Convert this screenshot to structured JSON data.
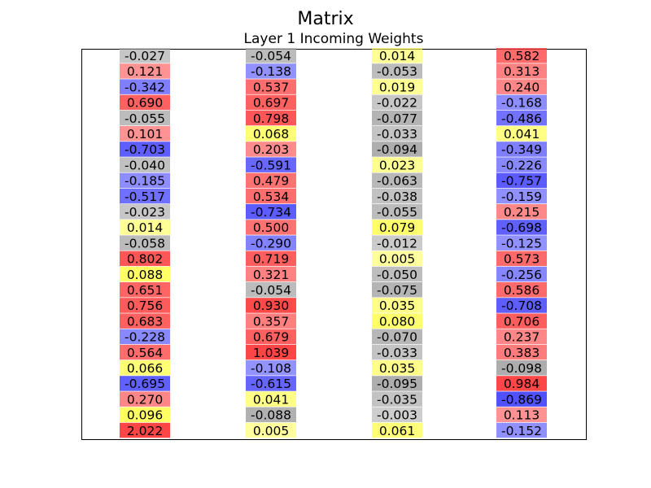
{
  "chart_data": {
    "type": "table",
    "title": "Matrix",
    "subtitle": "Layer 1 Incoming Weights",
    "columns": [
      [
        "-0.027",
        "0.121",
        "-0.342",
        "0.690",
        "-0.055",
        "0.101",
        "-0.703",
        "-0.040",
        "-0.185",
        "-0.517",
        "-0.023",
        "0.014",
        "-0.058",
        "0.802",
        "0.088",
        "0.651",
        "0.756",
        "0.683",
        "-0.228",
        "0.564",
        "0.066",
        "-0.695",
        "0.270",
        "0.096",
        "2.022"
      ],
      [
        "-0.054",
        "-0.138",
        "0.537",
        "0.697",
        "0.798",
        "0.068",
        "0.203",
        "-0.591",
        "0.479",
        "0.534",
        "-0.734",
        "0.500",
        "-0.290",
        "0.719",
        "0.321",
        "-0.054",
        "0.930",
        "0.357",
        "0.679",
        "1.039",
        "-0.108",
        "-0.615",
        "0.041",
        "-0.088",
        "0.005"
      ],
      [
        "0.014",
        "-0.053",
        "0.019",
        "-0.022",
        "-0.077",
        "-0.033",
        "-0.094",
        "0.023",
        "-0.063",
        "-0.038",
        "-0.055",
        "0.079",
        "-0.012",
        "0.005",
        "-0.050",
        "-0.075",
        "0.035",
        "0.080",
        "-0.070",
        "-0.033",
        "0.035",
        "-0.095",
        "-0.035",
        "-0.003",
        "0.061"
      ],
      [
        "0.582",
        "0.313",
        "0.240",
        "-0.168",
        "-0.486",
        "0.041",
        "-0.349",
        "-0.226",
        "-0.757",
        "-0.159",
        "0.215",
        "-0.698",
        "-0.125",
        "0.573",
        "-0.256",
        "0.586",
        "-0.708",
        "0.706",
        "0.237",
        "0.383",
        "-0.098",
        "0.984",
        "-0.869",
        "0.113",
        "-0.152"
      ]
    ],
    "colors": {
      "positive": "#ff3b3b",
      "negative": "#3b3bff",
      "near_zero_positive": "#ffff55",
      "near_zero_negative": "#a8a8a8"
    }
  }
}
